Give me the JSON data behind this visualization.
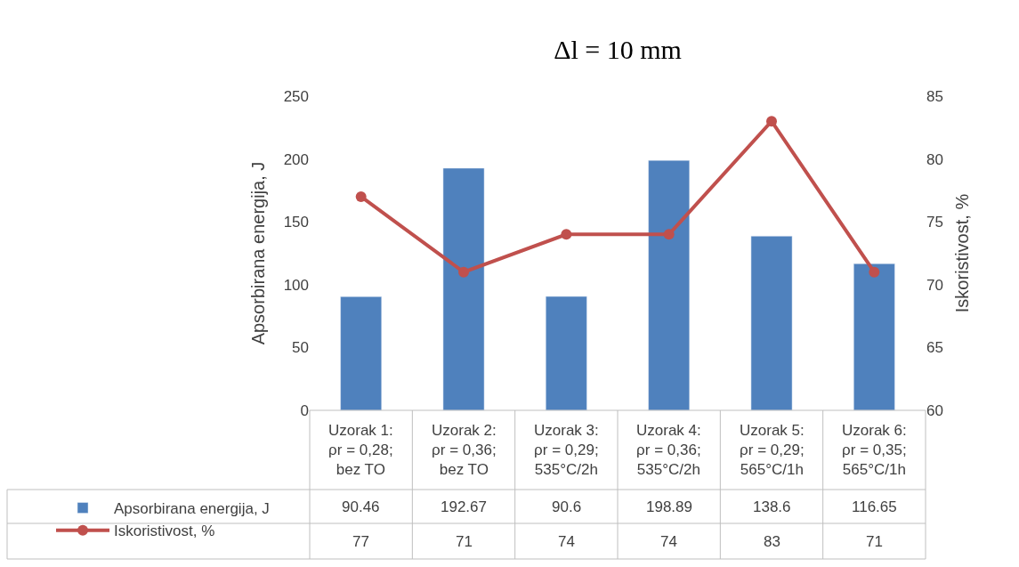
{
  "chart_data": {
    "type": "bar",
    "title": "Δl = 10 mm",
    "categories": [
      "Uzorak 1:\nρr = 0,28;\nbez TO",
      "Uzorak 2:\nρr = 0,36;\nbez TO",
      "Uzorak 3:\nρr = 0,29;\n535°C/2h",
      "Uzorak 4:\nρr = 0,36;\n535°C/2h",
      "Uzorak 5:\nρr = 0,29;\n565°C/1h",
      "Uzorak 6:\nρr = 0,35;\n565°C/1h"
    ],
    "series": [
      {
        "name": "Apsorbirana energija, J",
        "color": "#4f81bd",
        "values": [
          90.46,
          192.67,
          90.6,
          198.89,
          138.6,
          116.65
        ]
      },
      {
        "name": "Iskoristivost, %",
        "type": "line",
        "axis": "y2",
        "color": "#c0504d",
        "values": [
          77,
          71,
          74,
          74,
          83,
          71
        ]
      }
    ],
    "ylabel": "Apsorbirana energija, J",
    "y2label": "Iskoristivost, %",
    "ylim": [
      0,
      250
    ],
    "yticks": [
      0,
      50,
      100,
      150,
      200,
      250
    ],
    "y2lim": [
      60,
      85
    ],
    "y2ticks": [
      60,
      65,
      70,
      75,
      80,
      85
    ],
    "grid": false,
    "marker": "circle",
    "legend": "bottom left",
    "data_labels": true
  }
}
